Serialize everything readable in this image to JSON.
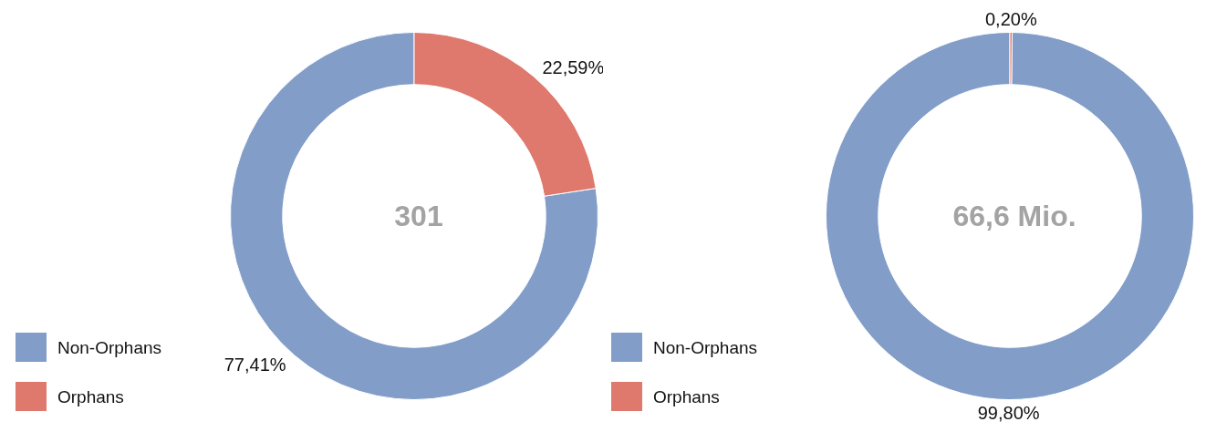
{
  "chart_data": [
    {
      "type": "donut",
      "title": "301",
      "categories": [
        "Non-Orphans",
        "Orphans"
      ],
      "values": [
        77.41,
        22.59
      ],
      "colors": [
        "#819dc8",
        "#df786d"
      ],
      "value_labels": [
        "77,41%",
        "22,59%"
      ],
      "legend": "bottom left"
    },
    {
      "type": "donut",
      "title": "66,6 Mio.",
      "categories": [
        "Non-Orphans",
        "Orphans"
      ],
      "values": [
        99.8,
        0.2
      ],
      "colors": [
        "#819dc8",
        "#df786d"
      ],
      "value_labels": [
        "99,80%",
        "0,20%"
      ],
      "legend": "bottom left"
    }
  ]
}
